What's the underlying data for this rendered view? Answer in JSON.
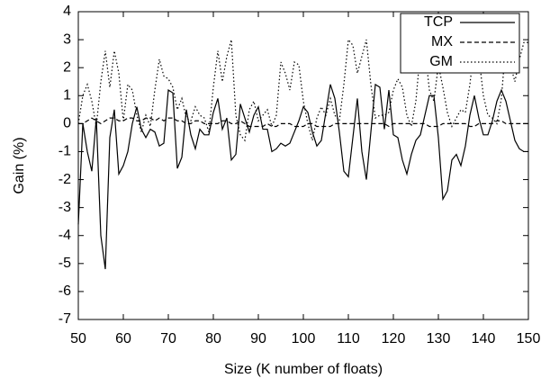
{
  "chart_data": {
    "type": "line",
    "x_label": "Size (K number of floats)",
    "y_label": "Gain (%)",
    "x": [
      50,
      51,
      52,
      53,
      54,
      55,
      56,
      57,
      58,
      59,
      60,
      61,
      62,
      63,
      64,
      65,
      66,
      67,
      68,
      69,
      70,
      71,
      72,
      73,
      74,
      75,
      76,
      77,
      78,
      79,
      80,
      81,
      82,
      83,
      84,
      85,
      86,
      87,
      88,
      89,
      90,
      91,
      92,
      93,
      94,
      95,
      96,
      97,
      98,
      99,
      100,
      101,
      102,
      103,
      104,
      105,
      106,
      107,
      108,
      109,
      110,
      111,
      112,
      113,
      114,
      115,
      116,
      117,
      118,
      119,
      120,
      121,
      122,
      123,
      124,
      125,
      126,
      127,
      128,
      129,
      130,
      131,
      132,
      133,
      134,
      135,
      136,
      137,
      138,
      139,
      140,
      141,
      142,
      143,
      144,
      145,
      146,
      147,
      148,
      149,
      150
    ],
    "series": [
      {
        "name": "TCP",
        "color": "#000000",
        "dash": "solid",
        "values": [
          -3.6,
          0,
          -1,
          -1.7,
          0.2,
          -4,
          -5.2,
          -0.5,
          0.5,
          -1.8,
          -1.5,
          -1,
          0,
          0.6,
          -0.2,
          -0.5,
          -0.2,
          -0.3,
          -0.8,
          -0.7,
          1.2,
          1.1,
          -1.6,
          -1.2,
          0.5,
          -0.4,
          -0.9,
          -0.2,
          -0.4,
          -0.4,
          0.4,
          0.9,
          -0.2,
          0.2,
          -1.3,
          -1.1,
          0.7,
          0.2,
          -0.3,
          0.3,
          0.6,
          -0.2,
          -0.2,
          -1,
          -0.9,
          -0.7,
          -0.8,
          -0.7,
          -0.3,
          0.1,
          0.6,
          0.4,
          -0.3,
          -0.8,
          -0.6,
          0.4,
          1.4,
          0.9,
          -0.3,
          -1.7,
          -1.9,
          -0.5,
          0.9,
          -1,
          -2,
          -0.3,
          1.4,
          1.3,
          -0.2,
          1.2,
          -0.4,
          -0.5,
          -1.3,
          -1.8,
          -1.1,
          -0.6,
          -0.4,
          0.3,
          1,
          1,
          -0.5,
          -2.7,
          -2.4,
          -1.3,
          -1.1,
          -1.5,
          -0.8,
          0.3,
          1,
          0.2,
          -0.4,
          -0.4,
          0.1,
          0.8,
          1.2,
          0.8,
          0.1,
          -0.6,
          -0.9,
          -1,
          -1
        ]
      },
      {
        "name": "MX",
        "color": "#000000",
        "dash": "dashed",
        "values": [
          0,
          0,
          0.1,
          0.2,
          0.1,
          0,
          0.1,
          0.2,
          0.2,
          0.1,
          0.1,
          0.2,
          0.2,
          0.1,
          0.1,
          0.2,
          0.2,
          0.1,
          0.2,
          0.1,
          0.2,
          0.2,
          0.1,
          0.1,
          0,
          0,
          0.1,
          0.1,
          0,
          0,
          0,
          0,
          0.1,
          0.1,
          0,
          0,
          0.1,
          0,
          -0.1,
          -0.1,
          -0.1,
          -0.1,
          0,
          -0.1,
          -0.1,
          0,
          0,
          0,
          -0.1,
          -0.1,
          -0.1,
          0,
          0,
          -0.1,
          -0.1,
          -0.1,
          -0.1,
          0,
          0,
          0,
          0,
          0,
          0,
          0,
          0,
          0,
          0,
          0,
          0,
          -0.1,
          0,
          0,
          0,
          0,
          0,
          0,
          0,
          0,
          -0.1,
          -0.1,
          -0.1,
          0,
          0,
          0,
          0,
          0,
          0,
          -0.1,
          -0.1,
          0,
          0,
          0,
          0,
          0.1,
          0.1,
          0,
          0,
          0,
          0,
          0,
          0
        ]
      },
      {
        "name": "GM",
        "color": "#000000",
        "dash": "dotted",
        "values": [
          0,
          1,
          1.4,
          0.8,
          -0.1,
          1.5,
          2.6,
          1.3,
          2.6,
          1.8,
          0.1,
          1.4,
          1.2,
          0.3,
          -0.3,
          0.3,
          -0.1,
          1.2,
          2.3,
          1.7,
          1.6,
          1.3,
          0.5,
          0.9,
          0.2,
          0.1,
          0.6,
          0.3,
          0.2,
          -0.3,
          1.3,
          2.6,
          1.5,
          2.4,
          3,
          0.3,
          -0.4,
          -0.6,
          0.5,
          0.8,
          0.1,
          0.3,
          0.5,
          -0.1,
          0.3,
          2.2,
          1.8,
          1.2,
          2.2,
          2.1,
          0.8,
          0,
          -0.6,
          0.2,
          0.6,
          0.3,
          0.9,
          0.3,
          0.1,
          1.4,
          3,
          2.8,
          1.8,
          2.4,
          3,
          1.4,
          0.2,
          0.3,
          0.3,
          0.4,
          1.2,
          1.6,
          1.3,
          0.3,
          -0.1,
          0.8,
          2.6,
          2.7,
          1.2,
          0.8,
          2.1,
          1.3,
          0.4,
          -0.1,
          0.2,
          0.5,
          0.4,
          1.4,
          2.8,
          2.4,
          1,
          0.3,
          0.2,
          0,
          0.9,
          2.9,
          2.1,
          1.5,
          2.3,
          2.9,
          2.9
        ]
      }
    ],
    "xlim": [
      50,
      150
    ],
    "xticks": [
      50,
      60,
      70,
      80,
      90,
      100,
      110,
      120,
      130,
      140,
      150
    ],
    "ylim": [
      -7,
      4
    ],
    "yticks": [
      -7,
      -6,
      -5,
      -4,
      -3,
      -2,
      -1,
      0,
      1,
      2,
      3,
      4
    ],
    "grid": false,
    "legend": "top-right"
  }
}
